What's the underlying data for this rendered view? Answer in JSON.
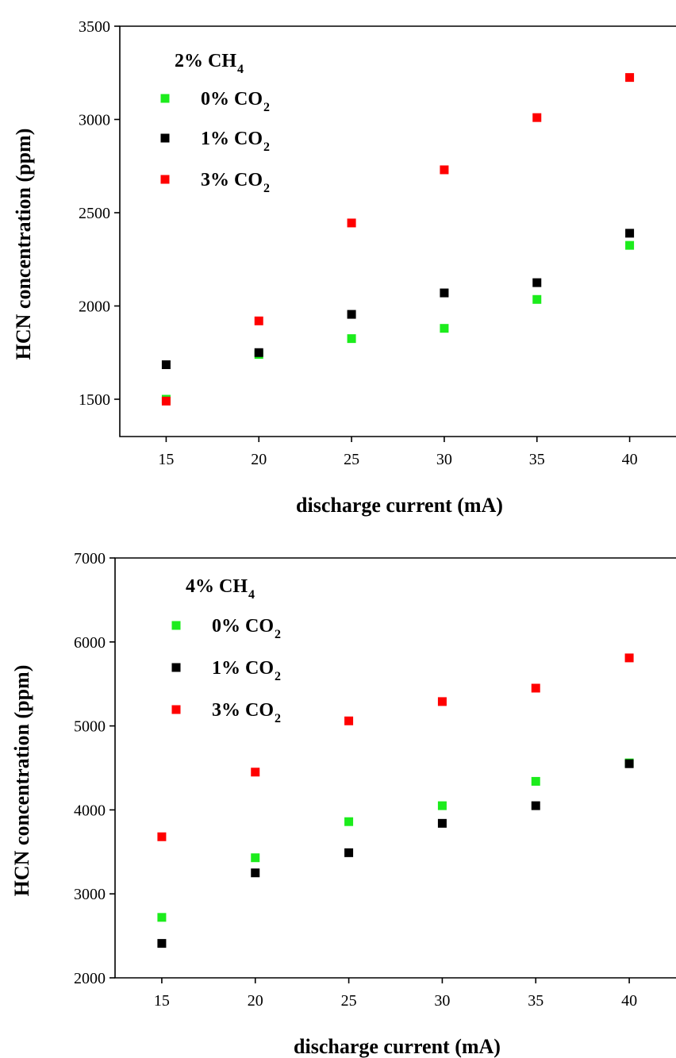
{
  "colors": {
    "green": "#1cec1c",
    "black": "#000000",
    "red": "#ff0000"
  },
  "chart_data": [
    {
      "type": "scatter",
      "title": "",
      "xlabel": "discharge current (mA)",
      "ylabel": "HCN concentration (ppm)",
      "xlim": [
        12.5,
        42.5
      ],
      "ylim": [
        1300,
        3500
      ],
      "xticks": [
        15,
        20,
        25,
        30,
        35,
        40
      ],
      "yticks": [
        1500,
        2000,
        2500,
        3000,
        3500
      ],
      "legend_title": "2% CH",
      "legend_title_sub": "4",
      "legend_placement": "top-left",
      "series": [
        {
          "name": "0% CO",
          "name_sub": "2",
          "color": "green",
          "x": [
            15,
            20,
            25,
            30,
            35,
            40
          ],
          "y": [
            1500,
            1740,
            1825,
            1880,
            2035,
            2325
          ]
        },
        {
          "name": "1% CO",
          "name_sub": "2",
          "color": "black",
          "x": [
            15,
            20,
            25,
            30,
            35,
            40
          ],
          "y": [
            1685,
            1750,
            1955,
            2070,
            2125,
            2390
          ]
        },
        {
          "name": "3% CO",
          "name_sub": "2",
          "color": "red",
          "x": [
            15,
            20,
            25,
            30,
            35,
            40
          ],
          "y": [
            1490,
            1920,
            2445,
            2730,
            3010,
            3225
          ]
        }
      ]
    },
    {
      "type": "scatter",
      "title": "",
      "xlabel": "discharge current (mA)",
      "ylabel": "HCN concentration (ppm)",
      "xlim": [
        12.5,
        42.5
      ],
      "ylim": [
        2000,
        7000
      ],
      "xticks": [
        15,
        20,
        25,
        30,
        35,
        40
      ],
      "yticks": [
        2000,
        3000,
        4000,
        5000,
        6000,
        7000
      ],
      "legend_title": "4% CH",
      "legend_title_sub": "4",
      "legend_placement": "top-left",
      "series": [
        {
          "name": "0% CO",
          "name_sub": "2",
          "color": "green",
          "x": [
            15,
            20,
            25,
            30,
            35,
            40
          ],
          "y": [
            2720,
            3430,
            3860,
            4050,
            4340,
            4560
          ]
        },
        {
          "name": "1% CO",
          "name_sub": "2",
          "color": "black",
          "x": [
            15,
            20,
            25,
            30,
            35,
            40
          ],
          "y": [
            2410,
            3250,
            3490,
            3840,
            4050,
            4550
          ]
        },
        {
          "name": "3% CO",
          "name_sub": "2",
          "color": "red",
          "x": [
            15,
            20,
            25,
            30,
            35,
            40
          ],
          "y": [
            3680,
            4450,
            5060,
            5290,
            5450,
            5810
          ]
        }
      ]
    }
  ]
}
